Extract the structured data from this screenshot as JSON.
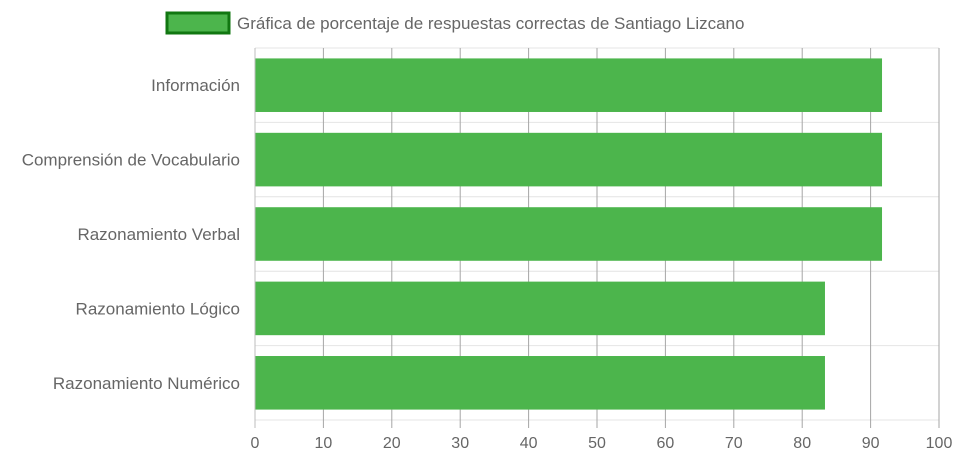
{
  "chart_data": {
    "type": "bar",
    "orientation": "horizontal",
    "categories": [
      "Información",
      "Comprensión de Vocabulario",
      "Razonamiento Verbal",
      "Razonamiento Lógico",
      "Razonamiento Numérico"
    ],
    "series": [
      {
        "name": "Gráfica de porcentaje de respuestas correctas de Santiago Lizcano",
        "values": [
          91.67,
          91.67,
          91.67,
          83.33,
          83.33
        ],
        "color": "#4cb54c",
        "border_color": "#117711"
      }
    ],
    "xlim": [
      0,
      100
    ],
    "x_ticks": [
      "0",
      "10",
      "20",
      "30",
      "40",
      "50",
      "60",
      "70",
      "80",
      "90",
      "100"
    ],
    "grid": true,
    "legend_position": "top"
  }
}
